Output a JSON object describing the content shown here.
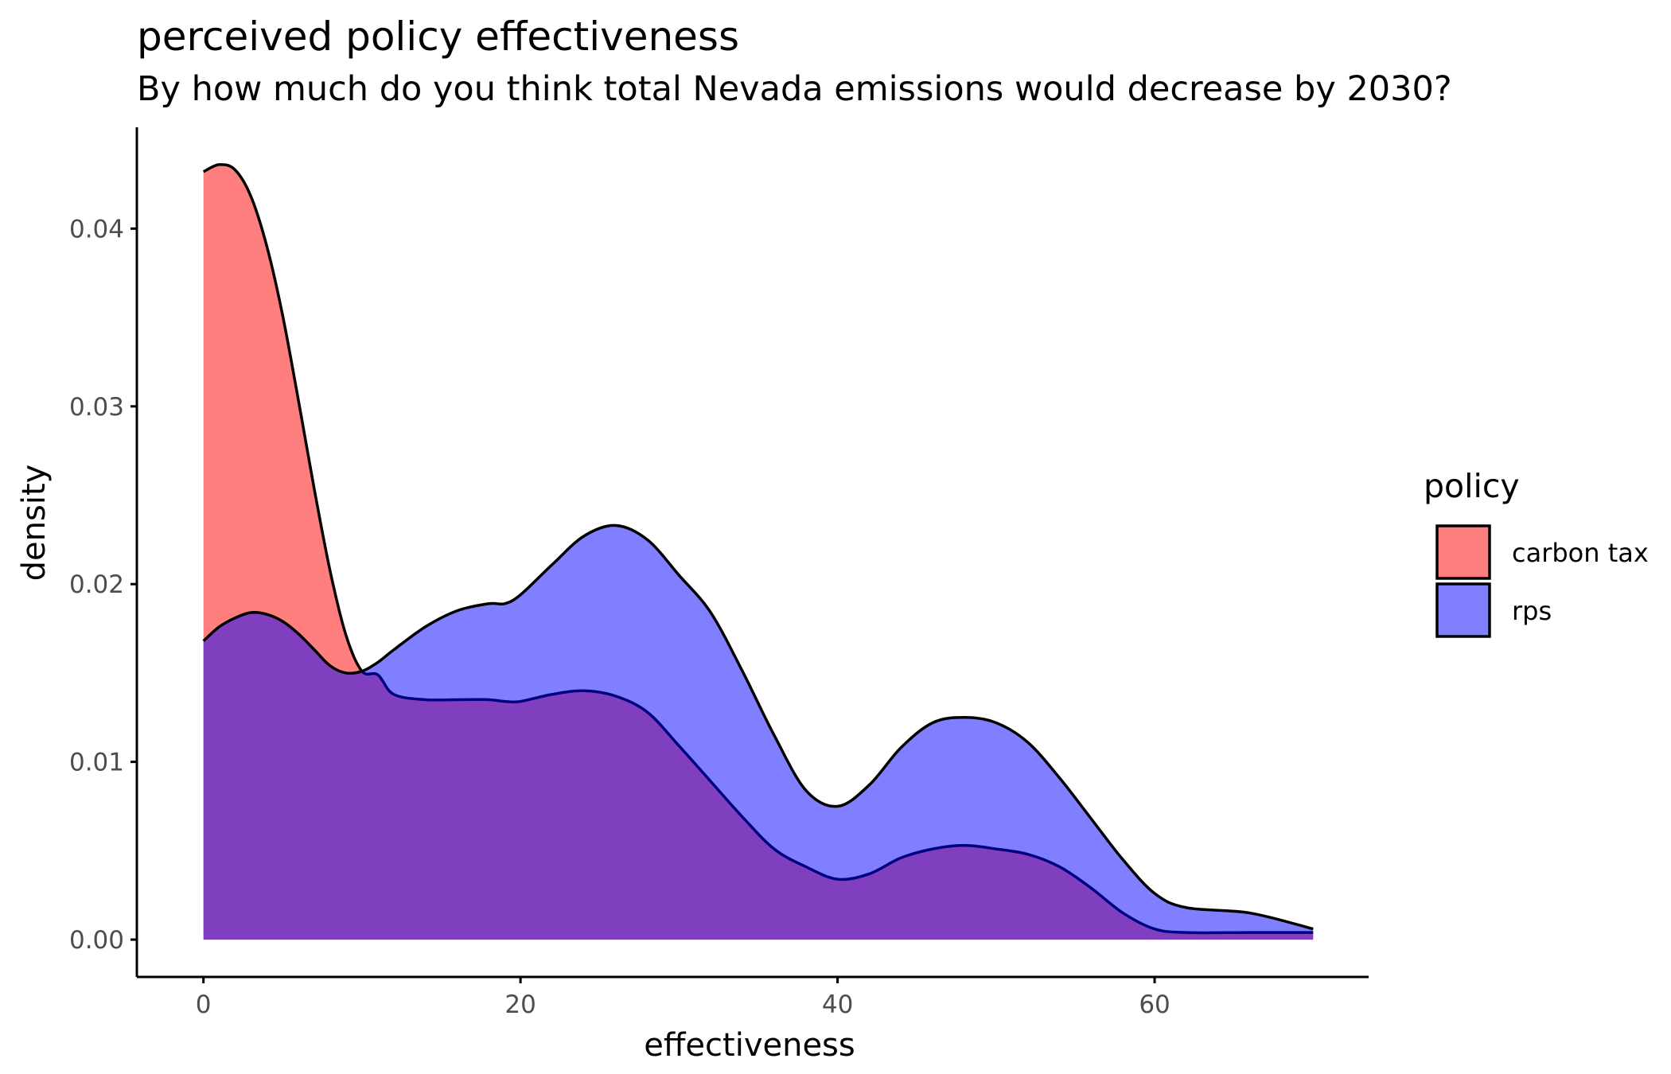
{
  "chart_data": {
    "type": "area",
    "subtype": "density",
    "title": "perceived policy effectiveness",
    "subtitle": "By how much do you think total Nevada emissions would decrease by 2030?",
    "xlabel": "effectiveness",
    "ylabel": "density",
    "xlim": [
      -4.2,
      73.5
    ],
    "ylim": [
      -0.0021,
      0.0457
    ],
    "x_ticks": [
      0,
      20,
      40,
      60
    ],
    "x_tick_labels": [
      "0",
      "20",
      "40",
      "60"
    ],
    "y_ticks": [
      0,
      0.01,
      0.02,
      0.03,
      0.04
    ],
    "y_tick_labels": [
      "0.00",
      "0.01",
      "0.02",
      "0.03",
      "0.04"
    ],
    "grid": false,
    "legend": {
      "title": "policy",
      "position": "right"
    },
    "series": [
      {
        "name": "carbon tax",
        "color": "#F8766D",
        "fill": "#ff0000",
        "fill_opacity": 0.5,
        "x": [
          0,
          1,
          2,
          3,
          4,
          5,
          6,
          7,
          8,
          9,
          10,
          11,
          12,
          14,
          16,
          18,
          19,
          20,
          22,
          24,
          26,
          28,
          30,
          32,
          34,
          36,
          38,
          40,
          42,
          44,
          46,
          48,
          50,
          52,
          54,
          56,
          58,
          60,
          62,
          66,
          70
        ],
        "y": [
          0.0432,
          0.0436,
          0.0433,
          0.0418,
          0.039,
          0.0351,
          0.0303,
          0.0253,
          0.0207,
          0.0171,
          0.0151,
          0.0149,
          0.0138,
          0.0135,
          0.0135,
          0.0135,
          0.0134,
          0.0134,
          0.0138,
          0.014,
          0.0137,
          0.0128,
          0.0109,
          0.0089,
          0.0069,
          0.0051,
          0.0041,
          0.0034,
          0.0037,
          0.0046,
          0.0051,
          0.0053,
          0.0051,
          0.0048,
          0.0041,
          0.0029,
          0.0015,
          0.0006,
          0.0004,
          0.0004,
          0.0004
        ]
      },
      {
        "name": "rps",
        "color": "#0000ff",
        "fill": "#0000ff",
        "fill_opacity": 0.5,
        "x": [
          0,
          1,
          2,
          3,
          4,
          5,
          6,
          7,
          8,
          9,
          10,
          11,
          12,
          14,
          16,
          18,
          19,
          20,
          22,
          24,
          26,
          28,
          30,
          32,
          34,
          36,
          38,
          40,
          42,
          44,
          46,
          48,
          50,
          52,
          54,
          56,
          58,
          60,
          62,
          66,
          70
        ],
        "y": [
          0.0168,
          0.0176,
          0.0181,
          0.0184,
          0.0183,
          0.0179,
          0.0172,
          0.0163,
          0.0154,
          0.015,
          0.0151,
          0.0156,
          0.0163,
          0.0176,
          0.0185,
          0.0189,
          0.0189,
          0.0194,
          0.0211,
          0.0227,
          0.0233,
          0.0225,
          0.0205,
          0.0184,
          0.0151,
          0.0115,
          0.0084,
          0.0075,
          0.0087,
          0.0108,
          0.0122,
          0.0125,
          0.0122,
          0.0111,
          0.0091,
          0.0068,
          0.0045,
          0.0026,
          0.0018,
          0.0015,
          0.0006
        ]
      }
    ]
  }
}
